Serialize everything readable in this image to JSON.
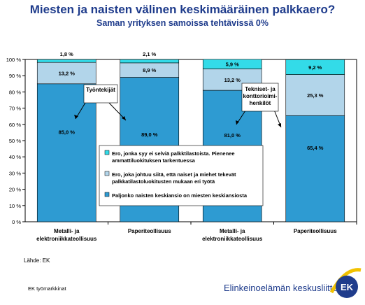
{
  "title": "Miesten ja naisten välinen keskimääräinen palkkaero?",
  "subtitle": "Saman yrityksen samoissa tehtävissä 0%",
  "source": "Lähde: EK",
  "footer_left": "EK työmarkkinat",
  "brand": "Elinkeinoelämän keskusliitto",
  "logo_text": "EK",
  "colors": {
    "bottom": "#2e9bd2",
    "middle": "#b2d5ea",
    "top": "#33dbe8",
    "title": "#1f3c8c"
  },
  "chart_data": {
    "type": "bar",
    "stacked": true,
    "categories": [
      [
        "Metalli- ja",
        "elektroniikkateollisuus"
      ],
      [
        "Paperiteollisuus"
      ],
      [
        "Metalli- ja",
        "elektroniikkateollisuus"
      ],
      [
        "Paperiteollisuus"
      ]
    ],
    "series": [
      {
        "name": "Paljonko naisten keskiansio on miesten keskiansiosta",
        "key": "bottom",
        "values": [
          85.0,
          89.0,
          81.0,
          65.4
        ],
        "labels": [
          "85,0 %",
          "89,0 %",
          "81,0 %",
          "65,4 %"
        ]
      },
      {
        "name": "Ero, joka johtuu siitä, että naiset ja miehet tekevät palkkatilastoluokitusten mukaan eri työtä",
        "key": "middle",
        "values": [
          13.2,
          8.9,
          13.2,
          25.3
        ],
        "labels": [
          "13,2 %",
          "8,9 %",
          "13,2 %",
          "25,3 %"
        ]
      },
      {
        "name": "Ero, jonka syy ei selviä palkktilastoista. Pienenee ammattiluokituksen tarkentuessa",
        "key": "top",
        "values": [
          1.8,
          2.1,
          5.9,
          9.2
        ],
        "labels": [
          "1,8 %",
          "2,1 %",
          "5,9 %",
          "9,2 %"
        ]
      }
    ],
    "legend": [
      {
        "key": "top",
        "lines": [
          "Ero, jonka syy ei selviä palkktilastoista. Pienenee",
          "ammattiluokituksen tarkentuessa"
        ]
      },
      {
        "key": "middle",
        "lines": [
          "Ero, joka johtuu siitä, että naiset ja miehet tekevät",
          "palkkatilastoluokitusten mukaan eri työtä"
        ]
      },
      {
        "key": "bottom",
        "lines": [
          "Paljonko naisten keskiansio on miesten keskiansiosta"
        ]
      }
    ],
    "legend_position": "center",
    "ylim": [
      0,
      100
    ],
    "yticks": [
      "0 %",
      "10 %",
      "20 %",
      "30 %",
      "40 %",
      "50 %",
      "60 %",
      "70 %",
      "80 %",
      "90 %",
      "100 %"
    ],
    "grid": false,
    "annotations": [
      {
        "lines": [
          "Työntekijät"
        ]
      },
      {
        "lines": [
          "Tekniset- ja",
          "konttorioimi-",
          "henkilöt"
        ]
      }
    ]
  }
}
